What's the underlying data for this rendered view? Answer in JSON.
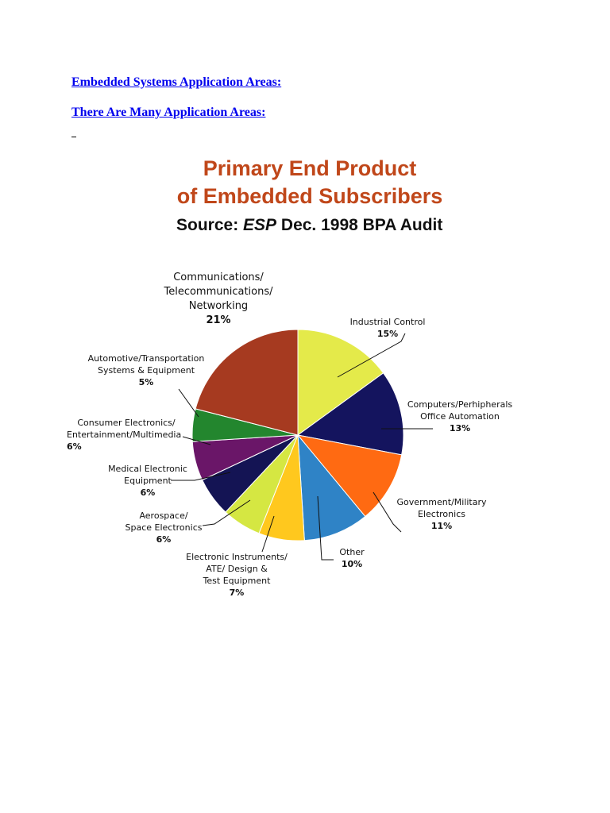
{
  "document": {
    "heading1": "Embedded Systems Application Areas:",
    "heading2": "There Are Many Application Areas:"
  },
  "figure": {
    "title_line1": "Primary End Product",
    "title_line2": "of Embedded Subscribers",
    "source_prefix": "Source: ",
    "source_italic": "ESP",
    "source_suffix": " Dec. 1998 BPA Audit"
  },
  "chart_data": {
    "type": "pie",
    "title": "Primary End Product of Embedded Subscribers",
    "subtitle": "Source: ESP Dec. 1998 BPA Audit",
    "slices": [
      {
        "label": "Industrial Control",
        "value": 15,
        "display": "15%",
        "color": "#e4ea4a"
      },
      {
        "label": "Computers/Perhipherals Office Automation",
        "value": 13,
        "display": "13%",
        "color": "#14145e"
      },
      {
        "label": "Government/Military Electronics",
        "value": 11,
        "display": "11%",
        "color": "#ff6a12"
      },
      {
        "label": "Other",
        "value": 10,
        "display": "10%",
        "color": "#2f83c6"
      },
      {
        "label": "Electronic Instruments/ ATE/ Design & Test Equipment",
        "value": 7,
        "display": "7%",
        "color": "#ffc81e"
      },
      {
        "label": "Aerospace/ Space Electronics",
        "value": 6,
        "display": "6%",
        "color": "#d5e742"
      },
      {
        "label": "Medical Electronic Equipment",
        "value": 6,
        "display": "6%",
        "color": "#141454"
      },
      {
        "label": "Consumer Electronics/ Entertainment/Multimedia",
        "value": 6,
        "display": "6%",
        "color": "#6a1668"
      },
      {
        "label": "Automotive/Transportation Systems & Equipment",
        "value": 5,
        "display": "5%",
        "color": "#23862e"
      },
      {
        "label": "Communications/ Telecommunications/ Networking",
        "value": 21,
        "display": "21%",
        "color": "#a63a20"
      }
    ]
  },
  "labels": {
    "comm": {
      "lines": [
        "Communications/",
        "Telecommunications/",
        "Networking"
      ],
      "pct": "21%"
    },
    "industrial": {
      "lines": [
        "Industrial Control"
      ],
      "pct": "15%"
    },
    "computers": {
      "lines": [
        "Computers/Perhipherals",
        "Office Automation"
      ],
      "pct": "13%"
    },
    "government": {
      "lines": [
        "Government/Military",
        "Electronics"
      ],
      "pct": "11%"
    },
    "other": {
      "lines": [
        "Other"
      ],
      "pct": "10%"
    },
    "instruments": {
      "lines": [
        "Electronic Instruments/",
        "ATE/ Design &",
        "Test Equipment"
      ],
      "pct": "7%"
    },
    "aerospace": {
      "lines": [
        "Aerospace/",
        "Space Electronics"
      ],
      "pct": "6%"
    },
    "medical": {
      "lines": [
        "Medical Electronic",
        "Equipment"
      ],
      "pct": "6%"
    },
    "consumer": {
      "lines": [
        "Consumer Electronics/",
        "Entertainment/Multimedia"
      ],
      "pct": "6%"
    },
    "automotive": {
      "lines": [
        "Automotive/Transportation",
        "Systems & Equipment"
      ],
      "pct": "5%"
    }
  }
}
